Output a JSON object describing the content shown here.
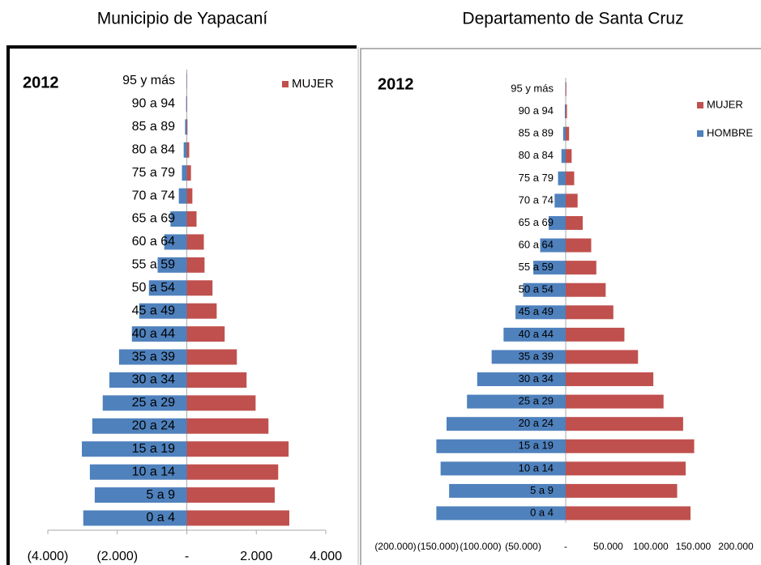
{
  "chart_data": [
    {
      "type": "pyramid",
      "title": "Municipio de Yapacaní",
      "subtitle": "2012",
      "categories": [
        "0 a 4",
        "5 a 9",
        "10 a 14",
        "15 a 19",
        "20 a 24",
        "25 a 29",
        "30 a 34",
        "35 a 39",
        "40 a 44",
        "45 a 49",
        "50 a 54",
        "55 a 59",
        "60 a 64",
        "65 a 69",
        "70 a 74",
        "75 a 79",
        "80 a 84",
        "85 a 89",
        "90 a 94",
        "95  y más"
      ],
      "series": [
        {
          "color": "#4f81bd",
          "values": [
            -2980,
            -2650,
            -2790,
            -3020,
            -2720,
            -2420,
            -2230,
            -1950,
            -1580,
            -1370,
            -1090,
            -840,
            -650,
            -470,
            -230,
            -140,
            -90,
            -50,
            -20,
            -10
          ]
        },
        {
          "name": "MUJER",
          "color": "#c0504d",
          "values": [
            2950,
            2530,
            2630,
            2930,
            2350,
            1980,
            1720,
            1440,
            1090,
            860,
            740,
            510,
            490,
            280,
            160,
            120,
            70,
            20,
            10,
            5
          ]
        }
      ],
      "xlim": [
        -4000,
        4000
      ],
      "xticks": [
        {
          "value": -4000,
          "label": "(4.000)"
        },
        {
          "value": -2000,
          "label": "(2.000)"
        },
        {
          "value": 0,
          "label": "-"
        },
        {
          "value": 2000,
          "label": "2.000"
        },
        {
          "value": 4000,
          "label": "4.000"
        }
      ],
      "legend": "top-right"
    },
    {
      "type": "pyramid",
      "title": "Departamento de Santa Cruz",
      "subtitle": "2012",
      "categories": [
        "0 a 4",
        "5 a 9",
        "10 a 14",
        "15 a 19",
        "20 a 24",
        "25 a 29",
        "30 a 34",
        "35 a 39",
        "40 a 44",
        "45 a 49",
        "50 a 54",
        "55 a 59",
        "60 a 64",
        "65 a 69",
        "70 a 74",
        "75 a 79",
        "80 a 84",
        "85 a 89",
        "90 a 94",
        "95  y más"
      ],
      "series": [
        {
          "name": "MUJER",
          "color": "#c0504d",
          "values": [
            146700,
            131000,
            141000,
            151000,
            138000,
            115000,
            103000,
            85000,
            69000,
            56000,
            47000,
            36000,
            30000,
            20000,
            14000,
            10000,
            7000,
            4000,
            1500,
            800
          ]
        },
        {
          "name": "HOMBRE",
          "color": "#4f81bd",
          "values": [
            -152000,
            -137000,
            -147000,
            -152000,
            -140000,
            -116000,
            -104000,
            -87000,
            -73000,
            -59000,
            -50000,
            -38000,
            -30000,
            -20000,
            -13000,
            -9000,
            -5000,
            -3000,
            -1000,
            -500
          ]
        }
      ],
      "xlim": [
        -200000,
        200000
      ],
      "xticks": [
        {
          "value": -200000,
          "label": "(200.000)"
        },
        {
          "value": -150000,
          "label": "(150.000)"
        },
        {
          "value": -100000,
          "label": "(100.000)"
        },
        {
          "value": -50000,
          "label": "(50.000)"
        },
        {
          "value": 0,
          "label": "-"
        },
        {
          "value": 50000,
          "label": "50.000"
        },
        {
          "value": 100000,
          "label": "100.000"
        },
        {
          "value": 150000,
          "label": "150.000"
        },
        {
          "value": 200000,
          "label": "200.000"
        }
      ],
      "legend": "top-right"
    }
  ]
}
